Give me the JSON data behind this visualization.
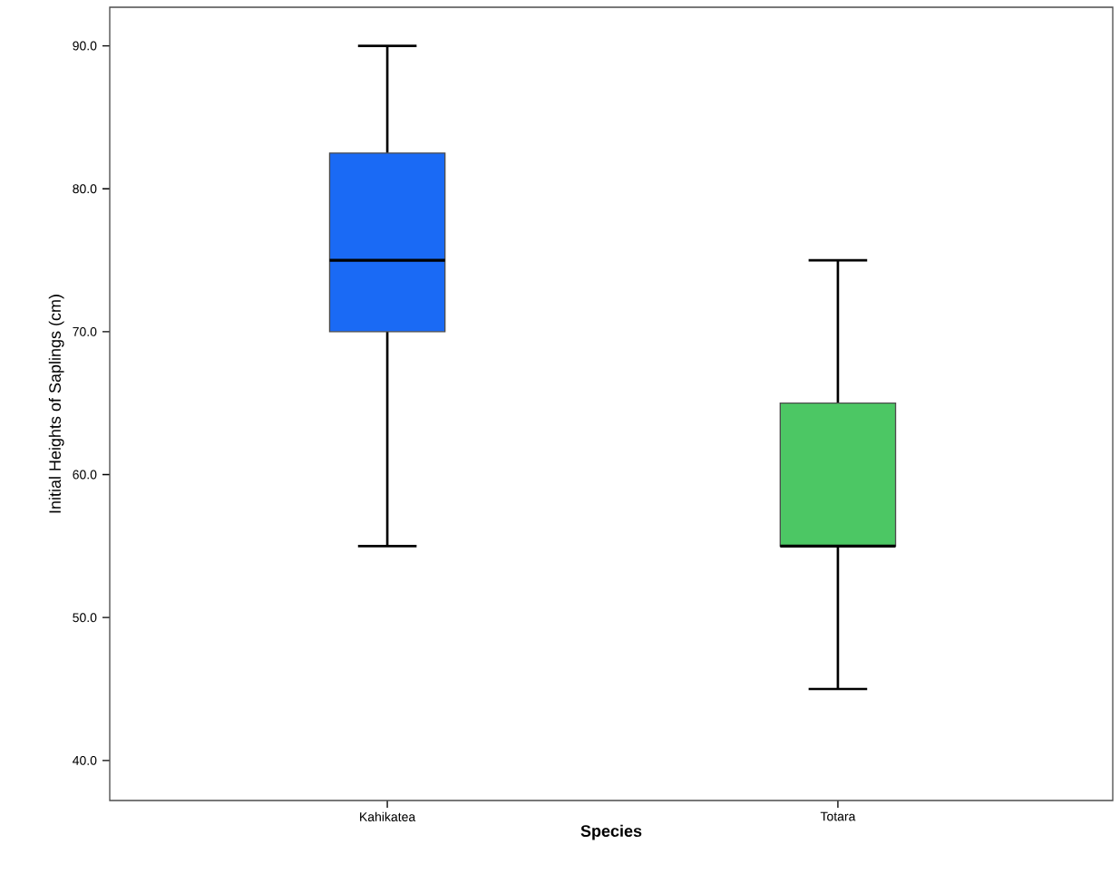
{
  "chart_data": {
    "type": "box",
    "xlabel": "Species",
    "ylabel": "Initial Heights of Saplings (cm)",
    "categories": [
      "Kahikatea",
      "Totara"
    ],
    "boxes": [
      {
        "low": 55,
        "q1": 70,
        "median": 75,
        "q3": 82.5,
        "high": 90
      },
      {
        "low": 45,
        "q1": 55,
        "median": 55,
        "q3": 65,
        "high": 75
      }
    ],
    "colors": [
      "#1a6af5",
      "#4cc764"
    ],
    "ylim": [
      37.2,
      92.7
    ],
    "yticks": [
      {
        "value": 40,
        "label": "40.0"
      },
      {
        "value": 50,
        "label": "50.0"
      },
      {
        "value": 60,
        "label": "60.0"
      },
      {
        "value": 70,
        "label": "70.0"
      },
      {
        "value": 80,
        "label": "80.0"
      },
      {
        "value": 90,
        "label": "90.0"
      }
    ],
    "grid": false
  }
}
